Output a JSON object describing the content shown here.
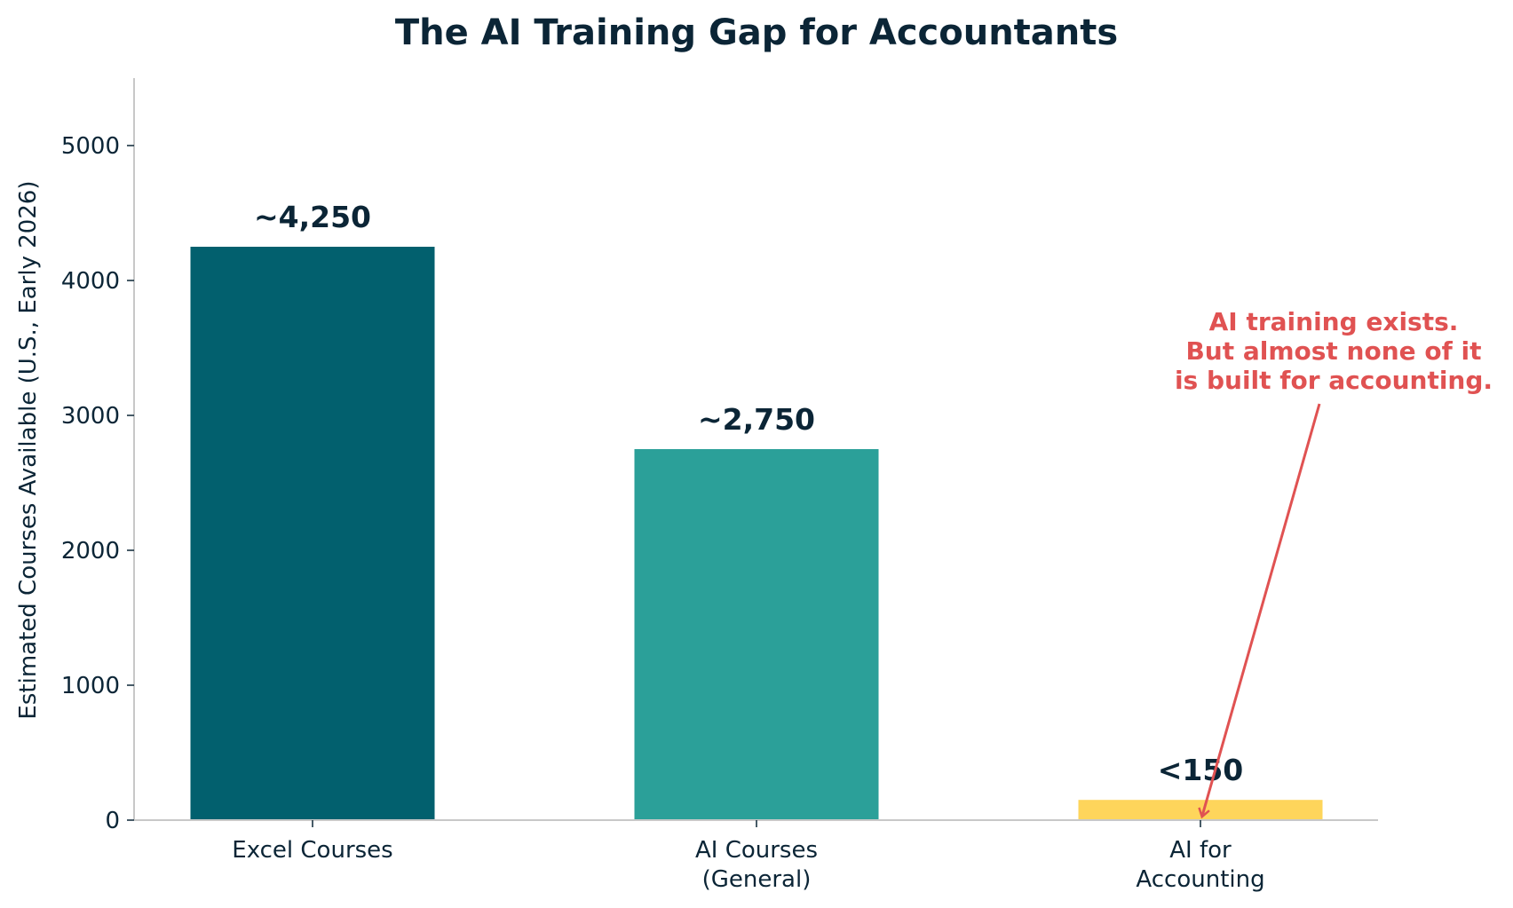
{
  "chart_data": {
    "type": "bar",
    "title": "The AI Training Gap for Accountants",
    "xlabel": "",
    "ylabel": "Estimated Courses Available (U.S., Early 2026)",
    "categories": [
      [
        "Excel Courses"
      ],
      [
        "AI Courses",
        "(General)"
      ],
      [
        "AI for",
        "Accounting"
      ]
    ],
    "values": [
      4250,
      2750,
      150
    ],
    "value_labels": [
      "~4,250",
      "~2,750",
      "<150"
    ],
    "bar_colors": [
      "#02606e",
      "#2ba099",
      "#fed55b"
    ],
    "ylim": [
      0,
      5500
    ],
    "yticks": [
      0,
      1000,
      2000,
      3000,
      4000,
      5000
    ],
    "grid": false,
    "annotation": {
      "lines": [
        "AI training exists.",
        "But almost none of it",
        "is built for accounting."
      ],
      "color": "#e05252",
      "target_category_index": 2
    },
    "text_color": "#0b2536",
    "axis_color": "#c8c8c8"
  }
}
